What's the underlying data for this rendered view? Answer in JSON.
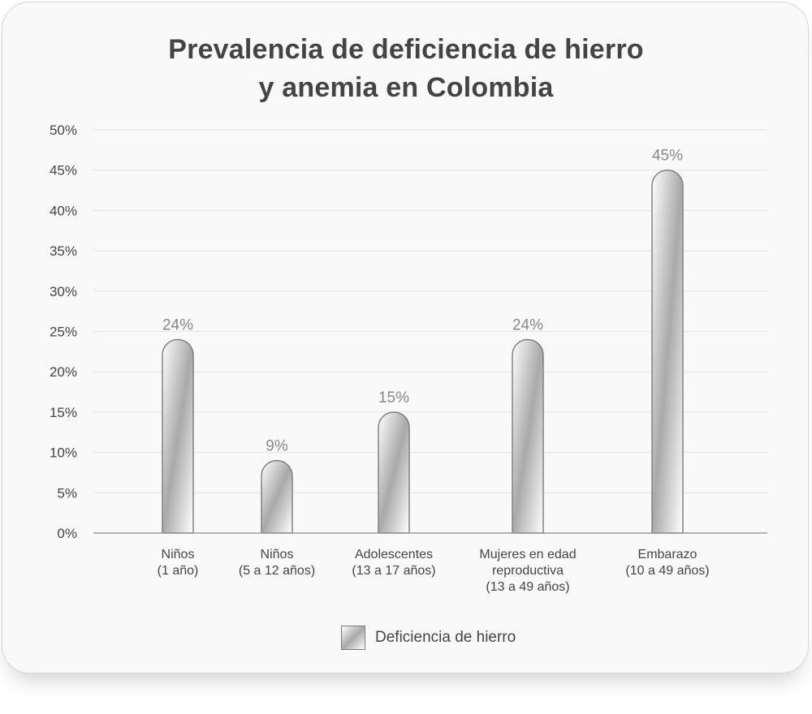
{
  "chart_data": {
    "type": "bar",
    "title_lines": [
      "Prevalencia de deficiencia de hierro",
      "y anemia en Colombia"
    ],
    "categories": [
      [
        "Niños",
        "(1 año)"
      ],
      [
        "Niños",
        "(5 a 12 años)"
      ],
      [
        "Adolescentes",
        "(13 a 17 años)"
      ],
      [
        "Mujeres en edad",
        "reproductiva",
        "(13 a 49 años)"
      ],
      [
        "Embarazo",
        "(10 a 49 años)"
      ]
    ],
    "series": [
      {
        "name": "Deficiencia de hierro",
        "values": [
          24,
          9,
          15,
          24,
          45
        ]
      }
    ],
    "value_labels": [
      "24%",
      "9%",
      "15%",
      "24%",
      "45%"
    ],
    "yticks": [
      0,
      5,
      10,
      15,
      20,
      25,
      30,
      35,
      40,
      45,
      50
    ],
    "ytick_labels": [
      "0%",
      "5%",
      "10%",
      "15%",
      "20%",
      "25%",
      "30%",
      "35%",
      "40%",
      "45%",
      "50%"
    ],
    "ylim": [
      0,
      50
    ],
    "xlabel": "",
    "ylabel": "",
    "grid": true,
    "legend": "bottom-center",
    "colors": {
      "bar_mid": "#a9a9a9",
      "bar_light": "#ffffff",
      "text": "#444444",
      "label": "#888888",
      "grid": "#e3e3e3"
    }
  }
}
